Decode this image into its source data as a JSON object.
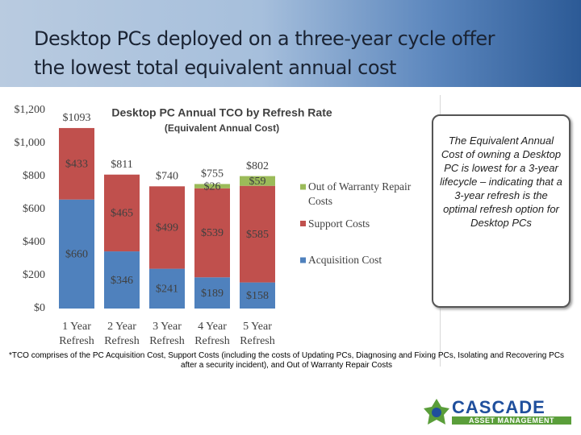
{
  "slide": {
    "title": "Desktop PCs deployed on a three-year cycle offer the lowest total equivalent annual cost"
  },
  "chart_data": {
    "type": "bar",
    "stacked": true,
    "title": "Desktop PC Annual TCO by Refresh Rate",
    "subtitle": "(Equivalent Annual Cost)",
    "categories": [
      "1 Year Refresh",
      "2 Year Refresh",
      "3 Year Refresh",
      "4 Year Refresh",
      "5 Year Refresh"
    ],
    "series": [
      {
        "name": "Acquisition Cost",
        "color": "#4f81bd",
        "values": [
          660,
          346,
          241,
          189,
          158
        ],
        "value_labels": [
          "$660",
          "$346",
          "$241",
          "$189",
          "$158"
        ]
      },
      {
        "name": "Support Costs",
        "color": "#c0504d",
        "values": [
          433,
          465,
          499,
          539,
          585
        ],
        "value_labels": [
          "$433",
          "$465",
          "$499",
          "$539",
          "$585"
        ]
      },
      {
        "name": "Out of Warranty Repair Costs",
        "color": "#9bbb59",
        "values": [
          null,
          null,
          null,
          26,
          59
        ],
        "value_labels": [
          null,
          null,
          null,
          "$26",
          "$59"
        ]
      }
    ],
    "totals": {
      "values": [
        1093,
        811,
        740,
        755,
        802
      ],
      "value_labels": [
        "$1093",
        "$811",
        "$740",
        "$755",
        "$802"
      ]
    },
    "ylim": [
      0,
      1200
    ],
    "yticks": [
      {
        "value": 0,
        "label": "$0"
      },
      {
        "value": 200,
        "label": "$200"
      },
      {
        "value": 400,
        "label": "$400"
      },
      {
        "value": 600,
        "label": "$600"
      },
      {
        "value": 800,
        "label": "$800"
      },
      {
        "value": 1000,
        "label": "$1,000"
      },
      {
        "value": 1200,
        "label": "$1,200"
      }
    ],
    "grid": false,
    "legend": "right"
  },
  "callout": "The Equivalent Annual Cost of owning a Desktop PC is lowest for a 3-year lifecycle – indicating that a 3-year refresh is the optimal refresh option for Desktop PCs",
  "footnote": "*TCO comprises of the PC Acquisition Cost, Support Costs (including the costs of Updating PCs, Diagnosing and Fixing PCs, Isolating and Recovering PCs after a security incident), and Out of Warranty Repair Costs",
  "logo": {
    "name": "CASCADE",
    "tagline": "ASSET MANAGEMENT"
  }
}
